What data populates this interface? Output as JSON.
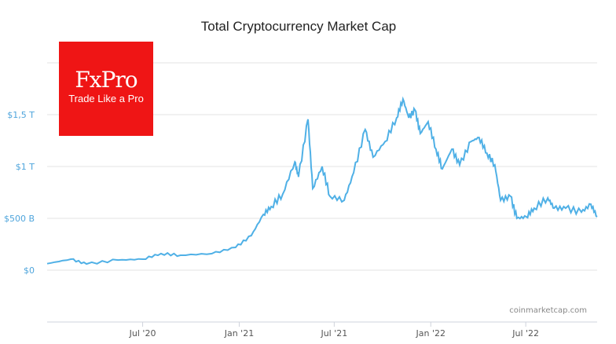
{
  "chart_data": {
    "type": "line",
    "title": "Total Cryptocurrency Market Cap",
    "xlabel": "",
    "ylabel": "",
    "x_ticks": [
      "Jul '20",
      "Jan '21",
      "Jul '21",
      "Jan '22",
      "Jul '22"
    ],
    "x_tick_dates": [
      "2020-07-01",
      "2021-01-01",
      "2021-07-01",
      "2022-01-01",
      "2022-07-01"
    ],
    "xlim": [
      "2020-01-01",
      "2022-11-14"
    ],
    "y_ticks": [
      {
        "value": 0,
        "label": "$0"
      },
      {
        "value": 500,
        "label": "$500 B"
      },
      {
        "value": 1000,
        "label": "$1 T"
      },
      {
        "value": 1500,
        "label": "$1,5 T"
      },
      {
        "value": 2000,
        "label": ""
      }
    ],
    "ylim": [
      -500,
      2000
    ],
    "y_unit": "billion USD",
    "grid": true,
    "line_color": "#4fb0e6",
    "series": [
      {
        "x": [
          "2020-01-01",
          "2020-02-15",
          "2020-03-16",
          "2020-05-15",
          "2020-07-01",
          "2020-08-05",
          "2020-09-11",
          "2020-11-10",
          "2020-12-25",
          "2021-01-24",
          "2021-02-16",
          "2021-03-03",
          "2021-03-25",
          "2021-04-17",
          "2021-04-24",
          "2021-05-12",
          "2021-05-21",
          "2021-06-08",
          "2021-06-23",
          "2021-07-20",
          "2021-08-07",
          "2021-08-29",
          "2021-09-13",
          "2021-10-06",
          "2021-10-28",
          "2021-11-09",
          "2021-11-20",
          "2021-12-02",
          "2021-12-12",
          "2021-12-27",
          "2022-01-11",
          "2022-01-23",
          "2022-02-10",
          "2022-02-25",
          "2022-03-19",
          "2022-04-03",
          "2022-04-18",
          "2022-05-03",
          "2022-05-14",
          "2022-06-02",
          "2022-06-14",
          "2022-07-02",
          "2022-07-17",
          "2022-08-12",
          "2022-08-24",
          "2022-09-15",
          "2022-10-15",
          "2022-11-02",
          "2022-11-14"
        ],
        "values": [
          63,
          106,
          60,
          98,
          106,
          160,
          144,
          160,
          220,
          333,
          538,
          614,
          735,
          1045,
          900,
          1455,
          788,
          1000,
          712,
          674,
          940,
          1356,
          1090,
          1242,
          1470,
          1650,
          1470,
          1545,
          1318,
          1432,
          1167,
          977,
          1167,
          1015,
          1242,
          1280,
          1129,
          1015,
          674,
          712,
          500,
          515,
          598,
          697,
          598,
          598,
          560,
          636,
          515
        ]
      }
    ]
  },
  "logo": {
    "brand": "FxPro",
    "tagline": "Trade Like a Pro",
    "color": "#ef1515"
  },
  "watermark": "coinmarketcap.com"
}
